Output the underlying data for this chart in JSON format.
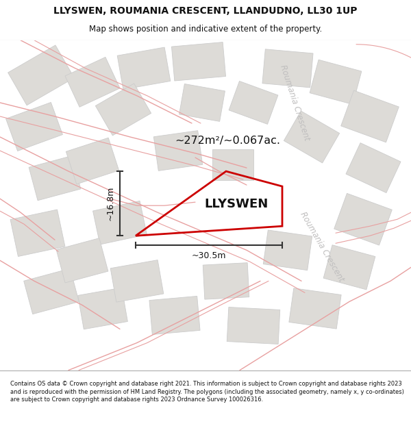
{
  "title_line1": "LLYSWEN, ROUMANIA CRESCENT, LLANDUDNO, LL30 1UP",
  "title_line2": "Map shows position and indicative extent of the property.",
  "area_text": "~272m²/~0.067ac.",
  "property_label": "LLYSWEN",
  "dim_width": "~30.5m",
  "dim_height": "~16.8m",
  "road_label_1": "Roumania Crescent",
  "road_label_2": "Roumania Crescent",
  "copyright_text": "Contains OS data © Crown copyright and database right 2021. This information is subject to Crown copyright and database rights 2023 and is reproduced with the permission of HM Land Registry. The polygons (including the associated geometry, namely x, y co-ordinates) are subject to Crown copyright and database rights 2023 Ordnance Survey 100026316.",
  "bg_color": "#f7f6f4",
  "block_color": "#dddbd7",
  "block_outline": "#cccccc",
  "road_line_color": "#e8a0a0",
  "property_edge": "#cc0000",
  "dim_color": "#333333",
  "title_color": "#111111",
  "road_text_color": "#c0bfbf",
  "fig_width": 6.0,
  "fig_height": 6.25
}
